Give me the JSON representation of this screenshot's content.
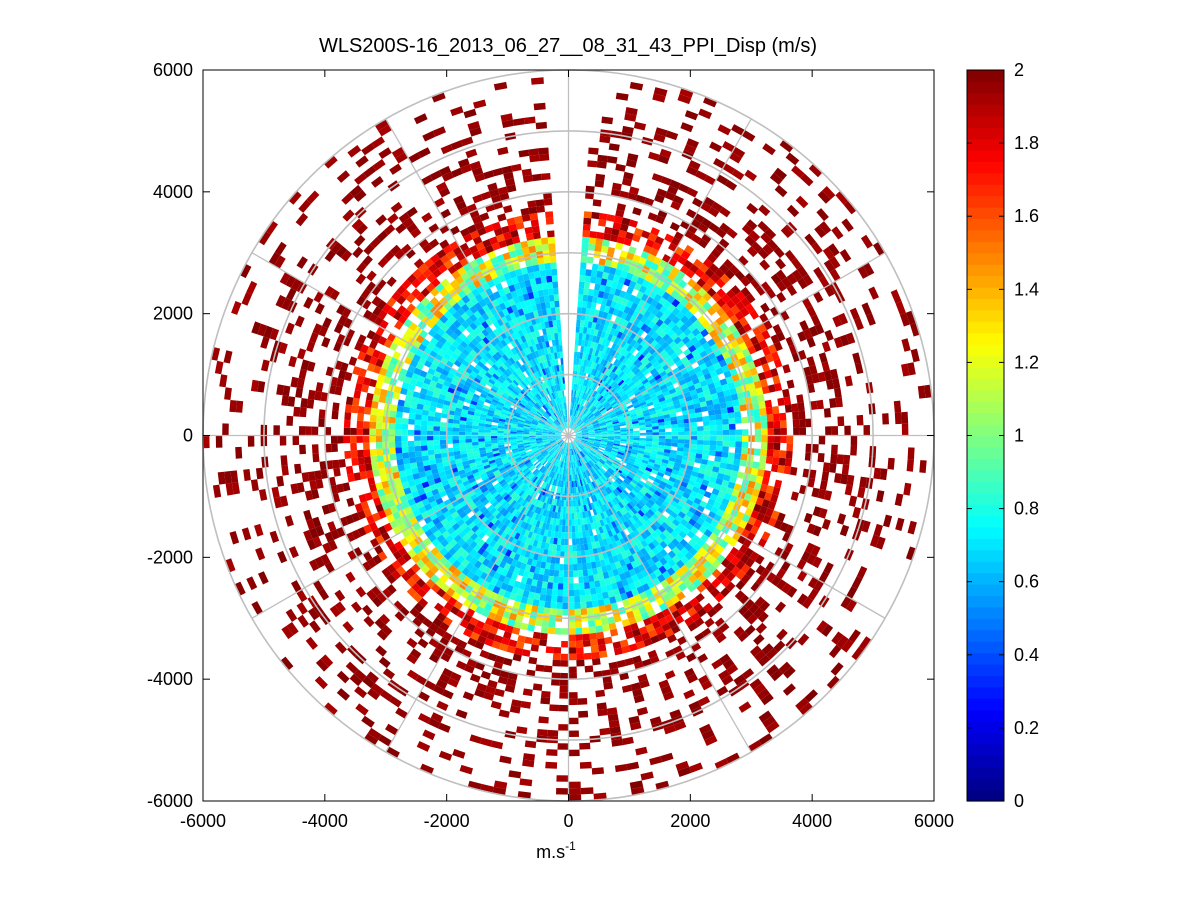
{
  "chart_data": {
    "type": "heatmap",
    "subtype": "polar-ppi",
    "title": "WLS200S-16_2013_06_27__08_31_43_PPI_Disp (m/s)",
    "xlabel_base": "m.s",
    "xlabel_sup": "-1",
    "ylabel": "",
    "xlim": [
      -6000,
      6000
    ],
    "ylim": [
      -6000,
      6000
    ],
    "x_ticks": [
      "-6000",
      "-4000",
      "-2000",
      "0",
      "2000",
      "4000",
      "6000"
    ],
    "y_ticks": [
      "6000",
      "4000",
      "2000",
      "0",
      "-2000",
      "-4000",
      "-6000"
    ],
    "x_tick_values": [
      -6000,
      -4000,
      -2000,
      0,
      2000,
      4000,
      6000
    ],
    "y_tick_values": [
      6000,
      4000,
      2000,
      0,
      -2000,
      -4000,
      -6000
    ],
    "range_rings": [
      1000,
      2000,
      3000,
      4000,
      5000,
      6000
    ],
    "spoke_angles_deg": [
      0,
      30,
      60,
      90,
      120,
      150,
      180,
      210,
      240,
      270,
      300,
      330
    ],
    "colorbar": {
      "colormap": "jet",
      "min": 0,
      "max": 2,
      "tick_values": [
        0,
        0.2,
        0.4,
        0.6,
        0.8,
        1,
        1.2,
        1.4,
        1.6,
        1.8,
        2
      ],
      "tick_labels": [
        "0",
        "0.2",
        "0.4",
        "0.6",
        "0.8",
        "1",
        "1.2",
        "1.4",
        "1.6",
        "1.8",
        "2"
      ]
    },
    "data_gap_sector_deg": [
      356,
      4
    ],
    "approximate_radial_profile": [
      {
        "range_m": [
          0,
          2800
        ],
        "typical_value": 0.7,
        "note": "mostly cyan/light blue, dense coverage"
      },
      {
        "range_m": [
          2800,
          3300
        ],
        "typical_value": 1.1,
        "note": "green/yellow transition band, dense"
      },
      {
        "range_m": [
          3300,
          3700
        ],
        "typical_value": 1.9,
        "note": "red to dark red band, dense"
      },
      {
        "range_m": [
          3700,
          6000
        ],
        "typical_value": 2.0,
        "note": "sparse dark red gates, saturated"
      }
    ]
  }
}
